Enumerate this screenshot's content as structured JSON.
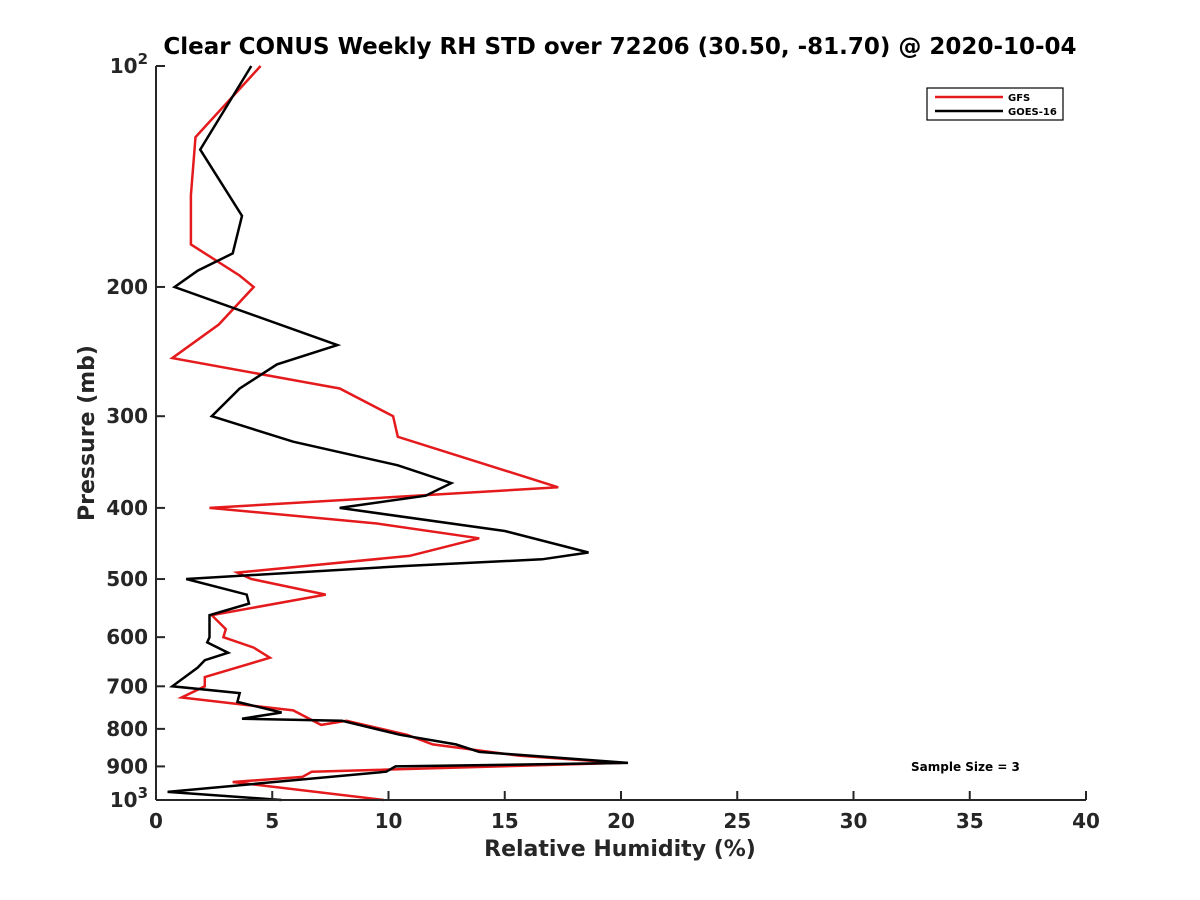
{
  "chart_data": {
    "type": "line",
    "title": "Clear CONUS Weekly RH STD over 72206 (30.50, -81.70) @ 2020-10-04",
    "xlabel": "Relative Humidity (%)",
    "ylabel": "Pressure (mb)",
    "xlim": [
      0,
      40
    ],
    "ylim": [
      100,
      1000
    ],
    "y_scale": "log",
    "y_reversed": true,
    "x_ticks": [
      "0",
      "5",
      "10",
      "15",
      "20",
      "25",
      "30",
      "35",
      "40"
    ],
    "y_ticks": [
      {
        "value": 100,
        "base": "10",
        "exp": "2"
      },
      {
        "value": 200,
        "label": "200"
      },
      {
        "value": 300,
        "label": "300"
      },
      {
        "value": 400,
        "label": "400"
      },
      {
        "value": 500,
        "label": "500"
      },
      {
        "value": 600,
        "label": "600"
      },
      {
        "value": 700,
        "label": "700"
      },
      {
        "value": 800,
        "label": "800"
      },
      {
        "value": 900,
        "label": "900"
      },
      {
        "value": 1000,
        "base": "10",
        "exp": "3"
      }
    ],
    "legend_position": "top-right",
    "grid": false,
    "annotation": "Sample Size = 3",
    "series": [
      {
        "name": "GFS",
        "color": "#e41a1c",
        "points": [
          [
            4.5,
            100
          ],
          [
            1.7,
            125
          ],
          [
            1.5,
            150
          ],
          [
            1.5,
            175
          ],
          [
            3.6,
            193
          ],
          [
            4.2,
            200
          ],
          [
            2.7,
            225
          ],
          [
            0.7,
            250
          ],
          [
            7.9,
            275
          ],
          [
            10.2,
            300
          ],
          [
            10.4,
            320
          ],
          [
            17.3,
            375
          ],
          [
            2.3,
            400
          ],
          [
            9.5,
            420
          ],
          [
            13.9,
            440
          ],
          [
            10.9,
            465
          ],
          [
            3.5,
            490
          ],
          [
            4.1,
            500
          ],
          [
            7.3,
            525
          ],
          [
            2.4,
            560
          ],
          [
            3.0,
            585
          ],
          [
            2.9,
            600
          ],
          [
            4.2,
            620
          ],
          [
            4.9,
            640
          ],
          [
            2.1,
            680
          ],
          [
            2.1,
            700
          ],
          [
            1.1,
            725
          ],
          [
            5.9,
            755
          ],
          [
            7.1,
            790
          ],
          [
            8.2,
            780
          ],
          [
            10.8,
            815
          ],
          [
            11.9,
            840
          ],
          [
            15.6,
            870
          ],
          [
            20.0,
            890
          ],
          [
            6.7,
            915
          ],
          [
            6.3,
            930
          ],
          [
            3.3,
            945
          ],
          [
            9.8,
            1000
          ]
        ]
      },
      {
        "name": "GOES-16",
        "color": "#000000",
        "points": [
          [
            4.1,
            100
          ],
          [
            1.9,
            130
          ],
          [
            3.7,
            160
          ],
          [
            3.3,
            180
          ],
          [
            1.8,
            190
          ],
          [
            0.8,
            200
          ],
          [
            7.8,
            240
          ],
          [
            5.2,
            255
          ],
          [
            3.6,
            275
          ],
          [
            2.4,
            300
          ],
          [
            5.9,
            325
          ],
          [
            10.4,
            350
          ],
          [
            12.7,
            370
          ],
          [
            11.6,
            385
          ],
          [
            7.9,
            400
          ],
          [
            15.0,
            430
          ],
          [
            18.6,
            460
          ],
          [
            16.6,
            470
          ],
          [
            10.7,
            480
          ],
          [
            1.3,
            500
          ],
          [
            3.9,
            525
          ],
          [
            4.0,
            540
          ],
          [
            2.3,
            560
          ],
          [
            2.3,
            585
          ],
          [
            2.3,
            600
          ],
          [
            2.2,
            610
          ],
          [
            3.1,
            630
          ],
          [
            2.1,
            645
          ],
          [
            1.8,
            660
          ],
          [
            0.7,
            700
          ],
          [
            3.6,
            715
          ],
          [
            3.5,
            735
          ],
          [
            5.4,
            760
          ],
          [
            3.7,
            775
          ],
          [
            8.0,
            780
          ],
          [
            10.5,
            815
          ],
          [
            12.9,
            840
          ],
          [
            13.9,
            860
          ],
          [
            20.3,
            890
          ],
          [
            10.3,
            900
          ],
          [
            9.9,
            915
          ],
          [
            0.5,
            975
          ],
          [
            5.4,
            1000
          ]
        ]
      }
    ]
  }
}
